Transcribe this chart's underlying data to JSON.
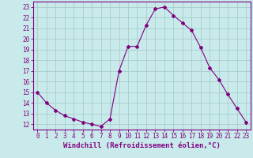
{
  "x": [
    0,
    1,
    2,
    3,
    4,
    5,
    6,
    7,
    8,
    9,
    10,
    11,
    12,
    13,
    14,
    15,
    16,
    17,
    18,
    19,
    20,
    21,
    22,
    23
  ],
  "y": [
    15,
    14,
    13.3,
    12.8,
    12.5,
    12.2,
    12.0,
    11.8,
    12.5,
    17.0,
    19.3,
    19.3,
    21.3,
    22.8,
    23.0,
    22.2,
    21.5,
    20.8,
    19.2,
    17.3,
    16.2,
    14.8,
    13.5,
    12.2
  ],
  "line_color": "#800080",
  "marker": "D",
  "marker_size": 2,
  "bg_color": "#c8eaea",
  "grid_color": "#a8cccc",
  "xlabel": "Windchill (Refroidissement éolien,°C)",
  "xlim": [
    -0.5,
    23.5
  ],
  "ylim": [
    11.5,
    23.5
  ],
  "yticks": [
    12,
    13,
    14,
    15,
    16,
    17,
    18,
    19,
    20,
    21,
    22,
    23
  ],
  "xticks": [
    0,
    1,
    2,
    3,
    4,
    5,
    6,
    7,
    8,
    9,
    10,
    11,
    12,
    13,
    14,
    15,
    16,
    17,
    18,
    19,
    20,
    21,
    22,
    23
  ],
  "axis_color": "#800080",
  "tick_color": "#800080",
  "label_fontsize": 6.5,
  "tick_fontsize": 5.5
}
